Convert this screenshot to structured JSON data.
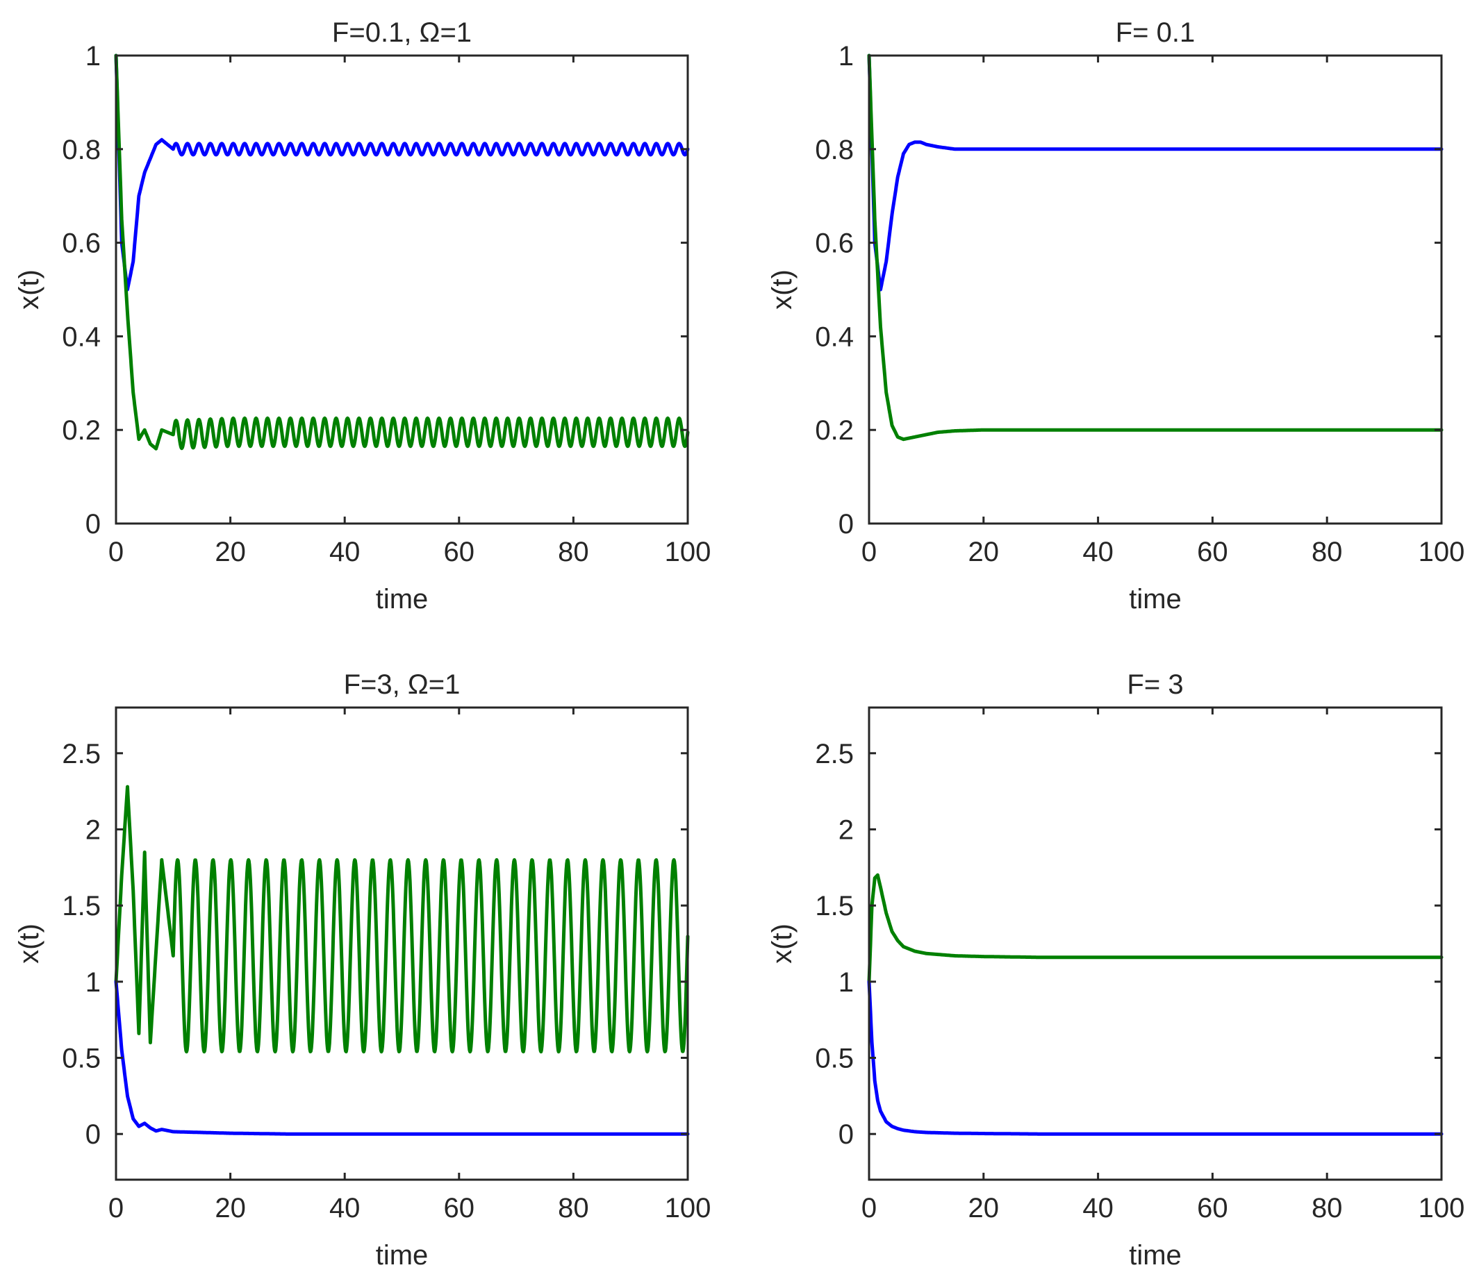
{
  "colors": {
    "blue": "#0000ff",
    "green": "#008000",
    "axis": "#262626",
    "background": "#ffffff"
  },
  "chart_data": [
    {
      "type": "line",
      "position": "top-left",
      "title": "F=0.1, Ω=1",
      "xlabel": "time",
      "ylabel": "x(t)",
      "xlim": [
        0,
        100
      ],
      "ylim": [
        0,
        1
      ],
      "xticks": [
        "0",
        "20",
        "40",
        "60",
        "80",
        "100"
      ],
      "yticks": [
        "0",
        "0.2",
        "0.4",
        "0.6",
        "0.8",
        "1"
      ],
      "grid": false,
      "series": [
        {
          "color": "blue",
          "x": [
            0,
            1,
            2,
            3,
            4,
            5,
            6,
            7,
            8,
            10,
            20,
            40,
            60,
            80,
            100
          ],
          "y": [
            1.0,
            0.6,
            0.5,
            0.56,
            0.7,
            0.75,
            0.78,
            0.81,
            0.82,
            0.8,
            0.8,
            0.8,
            0.8,
            0.8,
            0.8
          ],
          "oscillation_amplitude": 0.012,
          "oscillation_period": 2.0
        },
        {
          "color": "green",
          "x": [
            0,
            1,
            2,
            3,
            4,
            5,
            6,
            7,
            8,
            10,
            20,
            40,
            60,
            80,
            100
          ],
          "y": [
            1.0,
            0.65,
            0.45,
            0.28,
            0.18,
            0.2,
            0.17,
            0.16,
            0.2,
            0.19,
            0.195,
            0.195,
            0.195,
            0.195,
            0.195
          ],
          "oscillation_amplitude": 0.03,
          "oscillation_period": 2.0
        }
      ]
    },
    {
      "type": "line",
      "position": "top-right",
      "title": "F= 0.1",
      "xlabel": "time",
      "ylabel": "x(t)",
      "xlim": [
        0,
        100
      ],
      "ylim": [
        0,
        1
      ],
      "xticks": [
        "0",
        "20",
        "40",
        "60",
        "80",
        "100"
      ],
      "yticks": [
        "0",
        "0.2",
        "0.4",
        "0.6",
        "0.8",
        "1"
      ],
      "grid": false,
      "series": [
        {
          "color": "blue",
          "x": [
            0,
            1,
            2,
            3,
            4,
            5,
            6,
            7,
            8,
            9,
            10,
            12,
            15,
            20,
            40,
            60,
            80,
            100
          ],
          "y": [
            1.0,
            0.6,
            0.5,
            0.56,
            0.66,
            0.74,
            0.79,
            0.81,
            0.815,
            0.815,
            0.81,
            0.805,
            0.8,
            0.8,
            0.8,
            0.8,
            0.8,
            0.8
          ],
          "oscillation_amplitude": 0,
          "oscillation_period": 1
        },
        {
          "color": "green",
          "x": [
            0,
            1,
            2,
            3,
            4,
            5,
            6,
            8,
            10,
            12,
            15,
            20,
            40,
            60,
            80,
            100
          ],
          "y": [
            1.0,
            0.65,
            0.42,
            0.28,
            0.21,
            0.185,
            0.18,
            0.185,
            0.19,
            0.195,
            0.198,
            0.2,
            0.2,
            0.2,
            0.2,
            0.2
          ],
          "oscillation_amplitude": 0,
          "oscillation_period": 1
        }
      ]
    },
    {
      "type": "line",
      "position": "bottom-left",
      "title": "F=3, Ω=1",
      "xlabel": "time",
      "ylabel": "x(t)",
      "xlim": [
        0,
        100
      ],
      "ylim": [
        -0.3,
        2.8
      ],
      "xticks": [
        "0",
        "20",
        "40",
        "60",
        "80",
        "100"
      ],
      "yticks": [
        "0",
        "0.5",
        "1",
        "1.5",
        "2",
        "2.5"
      ],
      "grid": false,
      "series": [
        {
          "color": "green",
          "x": [
            0,
            1,
            2,
            3,
            4,
            5,
            6,
            8,
            10,
            20,
            40,
            60,
            80,
            100
          ],
          "y": [
            1.0,
            1.7,
            2.28,
            1.6,
            0.66,
            1.85,
            0.6,
            1.8,
            1.17,
            1.17,
            1.17,
            1.17,
            1.17,
            1.17
          ],
          "oscillation_amplitude": 0.63,
          "oscillation_period": 3.1
        },
        {
          "color": "blue",
          "x": [
            0,
            1,
            2,
            3,
            4,
            5,
            6,
            7,
            8,
            10,
            15,
            20,
            30,
            100
          ],
          "y": [
            1.0,
            0.55,
            0.25,
            0.1,
            0.05,
            0.07,
            0.04,
            0.02,
            0.03,
            0.015,
            0.01,
            0.005,
            0.0,
            0.0
          ],
          "oscillation_amplitude": 0,
          "oscillation_period": 1
        }
      ]
    },
    {
      "type": "line",
      "position": "bottom-right",
      "title": "F= 3",
      "xlabel": "time",
      "ylabel": "x(t)",
      "xlim": [
        0,
        100
      ],
      "ylim": [
        -0.3,
        2.8
      ],
      "xticks": [
        "0",
        "20",
        "40",
        "60",
        "80",
        "100"
      ],
      "yticks": [
        "0",
        "0.5",
        "1",
        "1.5",
        "2",
        "2.5"
      ],
      "grid": false,
      "series": [
        {
          "color": "green",
          "x": [
            0,
            0.5,
            1,
            1.5,
            2,
            3,
            4,
            5,
            6,
            8,
            10,
            15,
            20,
            30,
            40,
            60,
            80,
            100
          ],
          "y": [
            1.0,
            1.5,
            1.68,
            1.7,
            1.62,
            1.45,
            1.33,
            1.27,
            1.23,
            1.2,
            1.185,
            1.17,
            1.165,
            1.16,
            1.16,
            1.16,
            1.16,
            1.16
          ],
          "oscillation_amplitude": 0,
          "oscillation_period": 1
        },
        {
          "color": "blue",
          "x": [
            0,
            0.5,
            1,
            1.5,
            2,
            3,
            4,
            5,
            6,
            8,
            10,
            15,
            20,
            30,
            100
          ],
          "y": [
            1.0,
            0.6,
            0.35,
            0.22,
            0.15,
            0.08,
            0.05,
            0.035,
            0.025,
            0.015,
            0.01,
            0.005,
            0.003,
            0.0,
            0.0
          ],
          "oscillation_amplitude": 0,
          "oscillation_period": 1
        }
      ]
    }
  ]
}
